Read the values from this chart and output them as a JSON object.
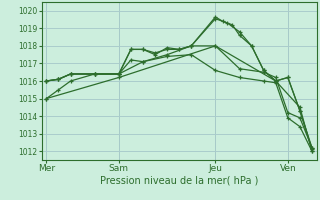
{
  "background_color": "#cceedd",
  "grid_color": "#aacccc",
  "line_color": "#2d6e2d",
  "xlabel": "Pression niveau de la mer( hPa )",
  "ylim": [
    1011.5,
    1020.5
  ],
  "yticks": [
    1012,
    1013,
    1014,
    1015,
    1016,
    1017,
    1018,
    1019,
    1020
  ],
  "xtick_labels": [
    "Mer",
    "Sam",
    "Jeu",
    "Ven"
  ],
  "xtick_positions": [
    0,
    3,
    7,
    10
  ],
  "xlim": [
    -0.2,
    11.2
  ],
  "series": [
    {
      "x": [
        0.0,
        0.5,
        1.0,
        2.0,
        3.0,
        3.5,
        4.0,
        4.5,
        5.0,
        5.5,
        6.0,
        7.0,
        7.5,
        8.0,
        8.5,
        9.0,
        9.5,
        10.0,
        10.5,
        11.0
      ],
      "y": [
        1016.0,
        1016.1,
        1016.4,
        1016.4,
        1016.4,
        1017.8,
        1017.8,
        1017.5,
        1017.9,
        1017.8,
        1018.0,
        1019.55,
        1019.3,
        1018.8,
        1018.0,
        1016.6,
        1016.0,
        1016.2,
        1014.3,
        1012.2
      ],
      "marker": "+"
    },
    {
      "x": [
        0.0,
        0.5,
        1.0,
        2.0,
        3.0,
        3.5,
        4.0,
        4.5,
        5.0,
        5.5,
        6.0,
        7.0,
        7.3,
        7.7,
        8.0,
        8.5,
        9.0,
        9.5,
        10.0,
        10.5,
        11.0
      ],
      "y": [
        1016.0,
        1016.1,
        1016.4,
        1016.4,
        1016.4,
        1017.8,
        1017.8,
        1017.6,
        1017.8,
        1017.8,
        1018.0,
        1019.65,
        1019.4,
        1019.2,
        1018.6,
        1018.0,
        1016.6,
        1016.0,
        1016.2,
        1014.3,
        1012.1
      ],
      "marker": "+"
    },
    {
      "x": [
        0.0,
        0.5,
        1.0,
        2.0,
        3.0,
        3.5,
        4.0,
        5.0,
        6.0,
        7.0,
        8.0,
        9.0,
        9.5,
        10.0,
        10.5,
        11.0
      ],
      "y": [
        1016.0,
        1016.1,
        1016.4,
        1016.4,
        1016.4,
        1017.2,
        1017.1,
        1017.5,
        1018.0,
        1018.0,
        1016.7,
        1016.5,
        1016.2,
        1014.2,
        1013.9,
        1012.2
      ],
      "marker": "+"
    },
    {
      "x": [
        0.0,
        0.5,
        1.0,
        2.0,
        3.0,
        4.0,
        5.0,
        6.0,
        7.0,
        8.0,
        9.0,
        9.5,
        10.0,
        10.5,
        11.0
      ],
      "y": [
        1015.0,
        1015.5,
        1016.0,
        1016.4,
        1016.4,
        1017.1,
        1017.4,
        1017.5,
        1016.6,
        1016.2,
        1016.0,
        1015.9,
        1013.9,
        1013.4,
        1012.0
      ],
      "marker": "+"
    },
    {
      "x": [
        0.0,
        3.0,
        7.0,
        9.5,
        10.5,
        11.0
      ],
      "y": [
        1015.0,
        1016.2,
        1018.0,
        1016.0,
        1014.5,
        1012.0
      ],
      "marker": "+"
    }
  ]
}
